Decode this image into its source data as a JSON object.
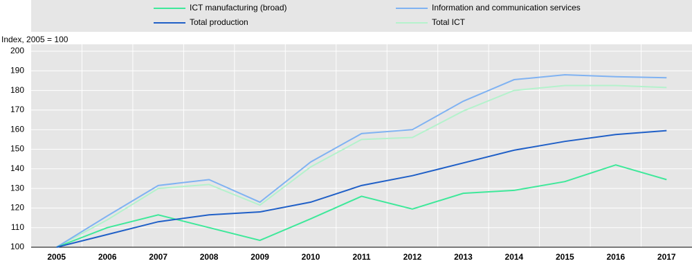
{
  "chart_data": {
    "type": "line",
    "y_label": "Index, 2005 = 100",
    "categories": [
      "2005",
      "2006",
      "2007",
      "2008",
      "2009",
      "2010",
      "2011",
      "2012",
      "2013",
      "2014",
      "2015",
      "2016",
      "2017"
    ],
    "series": [
      {
        "name": "ICT manufacturing (broad)",
        "color": "#3ee89a",
        "values": [
          100,
          110,
          116.5,
          110,
          103.5,
          114.5,
          126,
          119.5,
          127.5,
          129,
          133.5,
          142,
          134.5
        ]
      },
      {
        "name": "Information and communication services",
        "color": "#7fb2f2",
        "values": [
          100,
          116,
          131.5,
          134.5,
          123,
          143.5,
          158,
          160,
          174.5,
          185.5,
          188,
          187,
          186.5
        ]
      },
      {
        "name": "Total production",
        "color": "#1f5fc7",
        "values": [
          100,
          106.5,
          113,
          116.5,
          118,
          123,
          131.5,
          136.5,
          143,
          149.5,
          154,
          157.5,
          159.5
        ]
      },
      {
        "name": "Total ICT",
        "color": "#b4f2cc",
        "values": [
          100,
          114,
          130,
          132,
          121.5,
          141,
          155,
          156,
          169.5,
          180,
          182.5,
          182.5,
          181.5
        ]
      }
    ],
    "ylim": [
      100,
      200
    ],
    "yticks": [
      100,
      110,
      120,
      130,
      140,
      150,
      160,
      170,
      180,
      190,
      200
    ],
    "grid": true,
    "legend": "top"
  }
}
